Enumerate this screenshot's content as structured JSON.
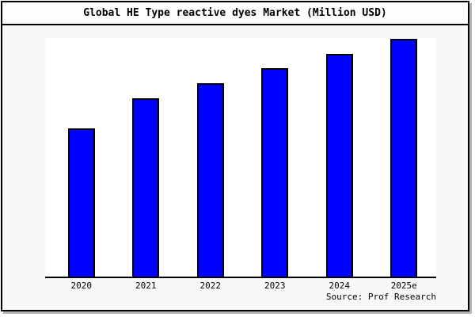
{
  "header": {
    "title": "Global HE Type reactive dyes Market (Million USD)"
  },
  "chart_data": {
    "type": "bar",
    "title": "Global HE Type reactive dyes Market (Million USD)",
    "categories": [
      "2020",
      "2021",
      "2022",
      "2023",
      "2024",
      "2025e"
    ],
    "values": [
      62,
      75,
      81,
      88,
      94,
      100
    ],
    "values_note": "No y-axis scale is shown in the image; values are relative bar heights with the tallest bar (2025e) normalized to 100",
    "bar_heights_pct": [
      62.1,
      74.8,
      81.1,
      87.4,
      93.4,
      99.7
    ],
    "xlabel": "",
    "ylabel": "",
    "y_axis_visible": false,
    "gridlines": false,
    "legend": false,
    "bar_color": "#0000ff",
    "bar_border_color": "#000000"
  },
  "footer": {
    "source_label": "Source: Prof Research"
  },
  "colors": {
    "page_background": "#ffffff",
    "chart_background": "#f8f8f8",
    "title_background": "#fdfdfd",
    "plot_background": "#ffffff",
    "frame_border": "#000000",
    "axis": "#000000",
    "shadow": "#b4b4b4",
    "text": "#000000"
  }
}
